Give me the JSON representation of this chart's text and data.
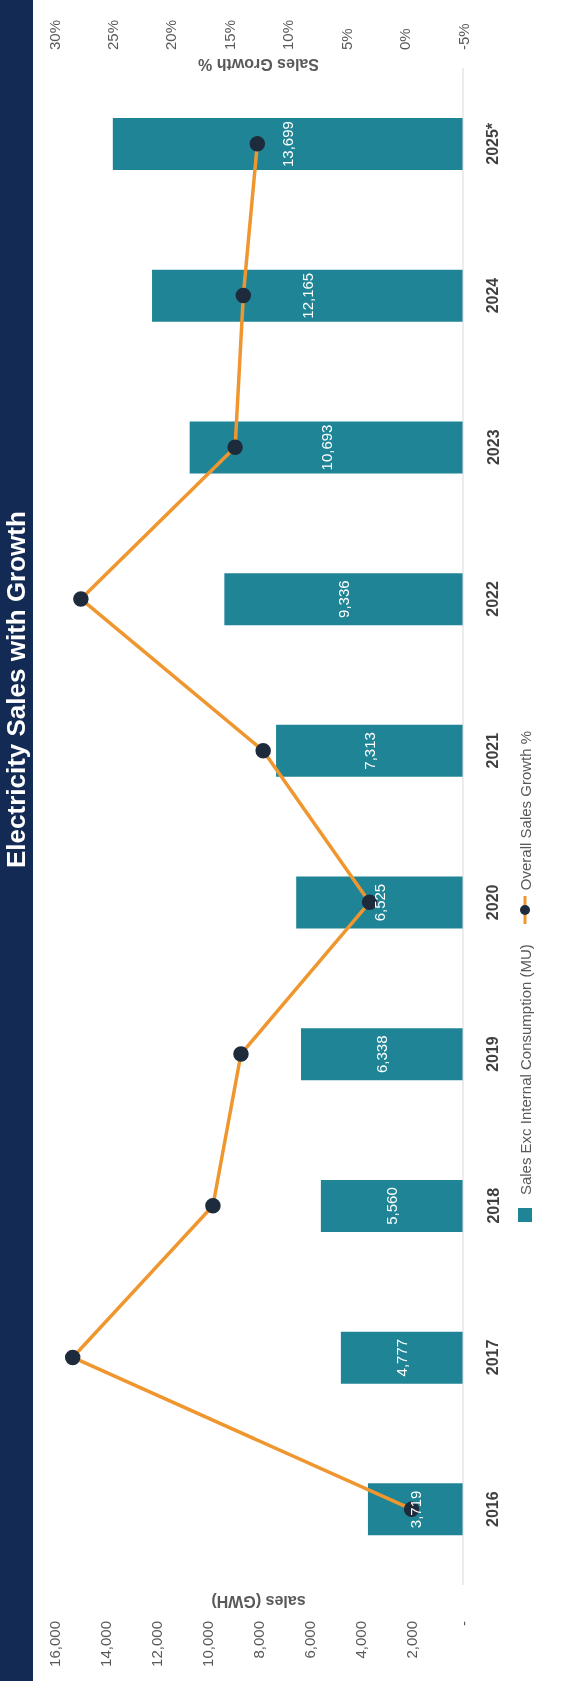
{
  "chart_data": {
    "type": "bar",
    "orientation": "horizontal",
    "title": "Electricity Sales with Growth",
    "xlabel": "sales (GWH)",
    "x2label": "Sales Growth %",
    "categories": [
      "2025*",
      "2024",
      "2023",
      "2022",
      "2021",
      "2020",
      "2019",
      "2018",
      "2017",
      "2016"
    ],
    "series": [
      {
        "name": "Sales Exc Internal Consumption (MU)",
        "color": "#1f8596",
        "values": [
          13699,
          12165,
          10693,
          9336,
          7313,
          6525,
          6338,
          5560,
          4777,
          3719
        ],
        "value_labels": [
          "13,699",
          "12,165",
          "10,693",
          "9,336",
          "7,313",
          "6,525",
          "6,338",
          "5,560",
          "4,777",
          "3,719"
        ]
      },
      {
        "type": "line",
        "axis": "x2",
        "name": "Overall Sales Growth %",
        "color": "#f0962e",
        "values": [
          12.6,
          13.8,
          14.5,
          27.7,
          12.1,
          3.0,
          14.0,
          16.4,
          28.4,
          -0.6
        ]
      }
    ],
    "xlim": [
      16000,
      0
    ],
    "xticks": [
      {
        "value": 16000,
        "label": "16,000"
      },
      {
        "value": 14000,
        "label": "14,000"
      },
      {
        "value": 12000,
        "label": "12,000"
      },
      {
        "value": 10000,
        "label": "10,000"
      },
      {
        "value": 8000,
        "label": "8,000"
      },
      {
        "value": 6000,
        "label": "6,000"
      },
      {
        "value": 4000,
        "label": "4,000"
      },
      {
        "value": 2000,
        "label": "2,000"
      },
      {
        "value": 0,
        "label": "-"
      }
    ],
    "x2lim": [
      30,
      -5
    ],
    "x2ticks": [
      {
        "value": 30,
        "label": "30%"
      },
      {
        "value": 25,
        "label": "25%"
      },
      {
        "value": 20,
        "label": "20%"
      },
      {
        "value": 15,
        "label": "15%"
      },
      {
        "value": 10,
        "label": "10%"
      },
      {
        "value": 5,
        "label": "5%"
      },
      {
        "value": 0,
        "label": "0%"
      },
      {
        "value": -5,
        "label": "-5%"
      }
    ],
    "legend": "right",
    "marker": "circle",
    "line_style": "solid"
  }
}
